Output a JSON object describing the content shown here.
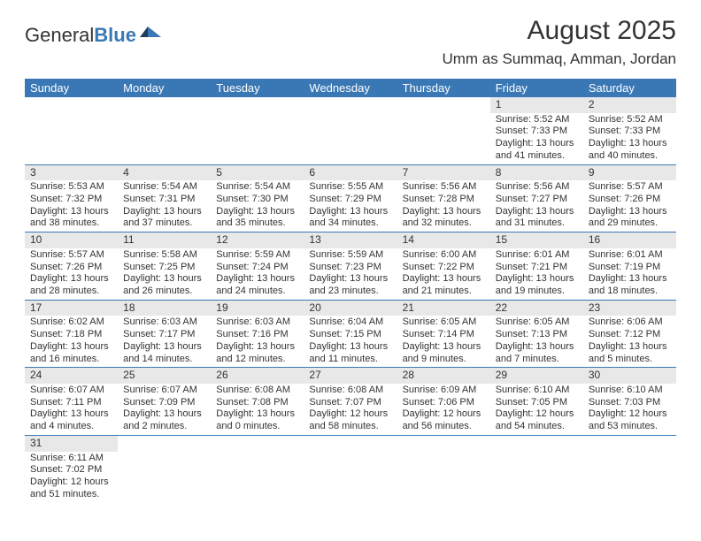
{
  "logo": {
    "text1": "General",
    "text2": "Blue"
  },
  "title": "August 2025",
  "location": "Umm as Summaq, Amman, Jordan",
  "colors": {
    "header_bg": "#3a78b5",
    "header_text": "#ffffff",
    "daynum_bg": "#e8e8e8",
    "cell_border": "#3a78b5",
    "text": "#333333",
    "page_bg": "#ffffff"
  },
  "fonts": {
    "title_size": 30,
    "location_size": 17,
    "header_size": 13,
    "daynum_size": 12,
    "body_size": 11
  },
  "weekdays": [
    "Sunday",
    "Monday",
    "Tuesday",
    "Wednesday",
    "Thursday",
    "Friday",
    "Saturday"
  ],
  "weeks": [
    [
      null,
      null,
      null,
      null,
      null,
      {
        "n": "1",
        "sr": "Sunrise: 5:52 AM",
        "ss": "Sunset: 7:33 PM",
        "dl": "Daylight: 13 hours and 41 minutes."
      },
      {
        "n": "2",
        "sr": "Sunrise: 5:52 AM",
        "ss": "Sunset: 7:33 PM",
        "dl": "Daylight: 13 hours and 40 minutes."
      }
    ],
    [
      {
        "n": "3",
        "sr": "Sunrise: 5:53 AM",
        "ss": "Sunset: 7:32 PM",
        "dl": "Daylight: 13 hours and 38 minutes."
      },
      {
        "n": "4",
        "sr": "Sunrise: 5:54 AM",
        "ss": "Sunset: 7:31 PM",
        "dl": "Daylight: 13 hours and 37 minutes."
      },
      {
        "n": "5",
        "sr": "Sunrise: 5:54 AM",
        "ss": "Sunset: 7:30 PM",
        "dl": "Daylight: 13 hours and 35 minutes."
      },
      {
        "n": "6",
        "sr": "Sunrise: 5:55 AM",
        "ss": "Sunset: 7:29 PM",
        "dl": "Daylight: 13 hours and 34 minutes."
      },
      {
        "n": "7",
        "sr": "Sunrise: 5:56 AM",
        "ss": "Sunset: 7:28 PM",
        "dl": "Daylight: 13 hours and 32 minutes."
      },
      {
        "n": "8",
        "sr": "Sunrise: 5:56 AM",
        "ss": "Sunset: 7:27 PM",
        "dl": "Daylight: 13 hours and 31 minutes."
      },
      {
        "n": "9",
        "sr": "Sunrise: 5:57 AM",
        "ss": "Sunset: 7:26 PM",
        "dl": "Daylight: 13 hours and 29 minutes."
      }
    ],
    [
      {
        "n": "10",
        "sr": "Sunrise: 5:57 AM",
        "ss": "Sunset: 7:26 PM",
        "dl": "Daylight: 13 hours and 28 minutes."
      },
      {
        "n": "11",
        "sr": "Sunrise: 5:58 AM",
        "ss": "Sunset: 7:25 PM",
        "dl": "Daylight: 13 hours and 26 minutes."
      },
      {
        "n": "12",
        "sr": "Sunrise: 5:59 AM",
        "ss": "Sunset: 7:24 PM",
        "dl": "Daylight: 13 hours and 24 minutes."
      },
      {
        "n": "13",
        "sr": "Sunrise: 5:59 AM",
        "ss": "Sunset: 7:23 PM",
        "dl": "Daylight: 13 hours and 23 minutes."
      },
      {
        "n": "14",
        "sr": "Sunrise: 6:00 AM",
        "ss": "Sunset: 7:22 PM",
        "dl": "Daylight: 13 hours and 21 minutes."
      },
      {
        "n": "15",
        "sr": "Sunrise: 6:01 AM",
        "ss": "Sunset: 7:21 PM",
        "dl": "Daylight: 13 hours and 19 minutes."
      },
      {
        "n": "16",
        "sr": "Sunrise: 6:01 AM",
        "ss": "Sunset: 7:19 PM",
        "dl": "Daylight: 13 hours and 18 minutes."
      }
    ],
    [
      {
        "n": "17",
        "sr": "Sunrise: 6:02 AM",
        "ss": "Sunset: 7:18 PM",
        "dl": "Daylight: 13 hours and 16 minutes."
      },
      {
        "n": "18",
        "sr": "Sunrise: 6:03 AM",
        "ss": "Sunset: 7:17 PM",
        "dl": "Daylight: 13 hours and 14 minutes."
      },
      {
        "n": "19",
        "sr": "Sunrise: 6:03 AM",
        "ss": "Sunset: 7:16 PM",
        "dl": "Daylight: 13 hours and 12 minutes."
      },
      {
        "n": "20",
        "sr": "Sunrise: 6:04 AM",
        "ss": "Sunset: 7:15 PM",
        "dl": "Daylight: 13 hours and 11 minutes."
      },
      {
        "n": "21",
        "sr": "Sunrise: 6:05 AM",
        "ss": "Sunset: 7:14 PM",
        "dl": "Daylight: 13 hours and 9 minutes."
      },
      {
        "n": "22",
        "sr": "Sunrise: 6:05 AM",
        "ss": "Sunset: 7:13 PM",
        "dl": "Daylight: 13 hours and 7 minutes."
      },
      {
        "n": "23",
        "sr": "Sunrise: 6:06 AM",
        "ss": "Sunset: 7:12 PM",
        "dl": "Daylight: 13 hours and 5 minutes."
      }
    ],
    [
      {
        "n": "24",
        "sr": "Sunrise: 6:07 AM",
        "ss": "Sunset: 7:11 PM",
        "dl": "Daylight: 13 hours and 4 minutes."
      },
      {
        "n": "25",
        "sr": "Sunrise: 6:07 AM",
        "ss": "Sunset: 7:09 PM",
        "dl": "Daylight: 13 hours and 2 minutes."
      },
      {
        "n": "26",
        "sr": "Sunrise: 6:08 AM",
        "ss": "Sunset: 7:08 PM",
        "dl": "Daylight: 13 hours and 0 minutes."
      },
      {
        "n": "27",
        "sr": "Sunrise: 6:08 AM",
        "ss": "Sunset: 7:07 PM",
        "dl": "Daylight: 12 hours and 58 minutes."
      },
      {
        "n": "28",
        "sr": "Sunrise: 6:09 AM",
        "ss": "Sunset: 7:06 PM",
        "dl": "Daylight: 12 hours and 56 minutes."
      },
      {
        "n": "29",
        "sr": "Sunrise: 6:10 AM",
        "ss": "Sunset: 7:05 PM",
        "dl": "Daylight: 12 hours and 54 minutes."
      },
      {
        "n": "30",
        "sr": "Sunrise: 6:10 AM",
        "ss": "Sunset: 7:03 PM",
        "dl": "Daylight: 12 hours and 53 minutes."
      }
    ],
    [
      {
        "n": "31",
        "sr": "Sunrise: 6:11 AM",
        "ss": "Sunset: 7:02 PM",
        "dl": "Daylight: 12 hours and 51 minutes."
      },
      null,
      null,
      null,
      null,
      null,
      null
    ]
  ]
}
